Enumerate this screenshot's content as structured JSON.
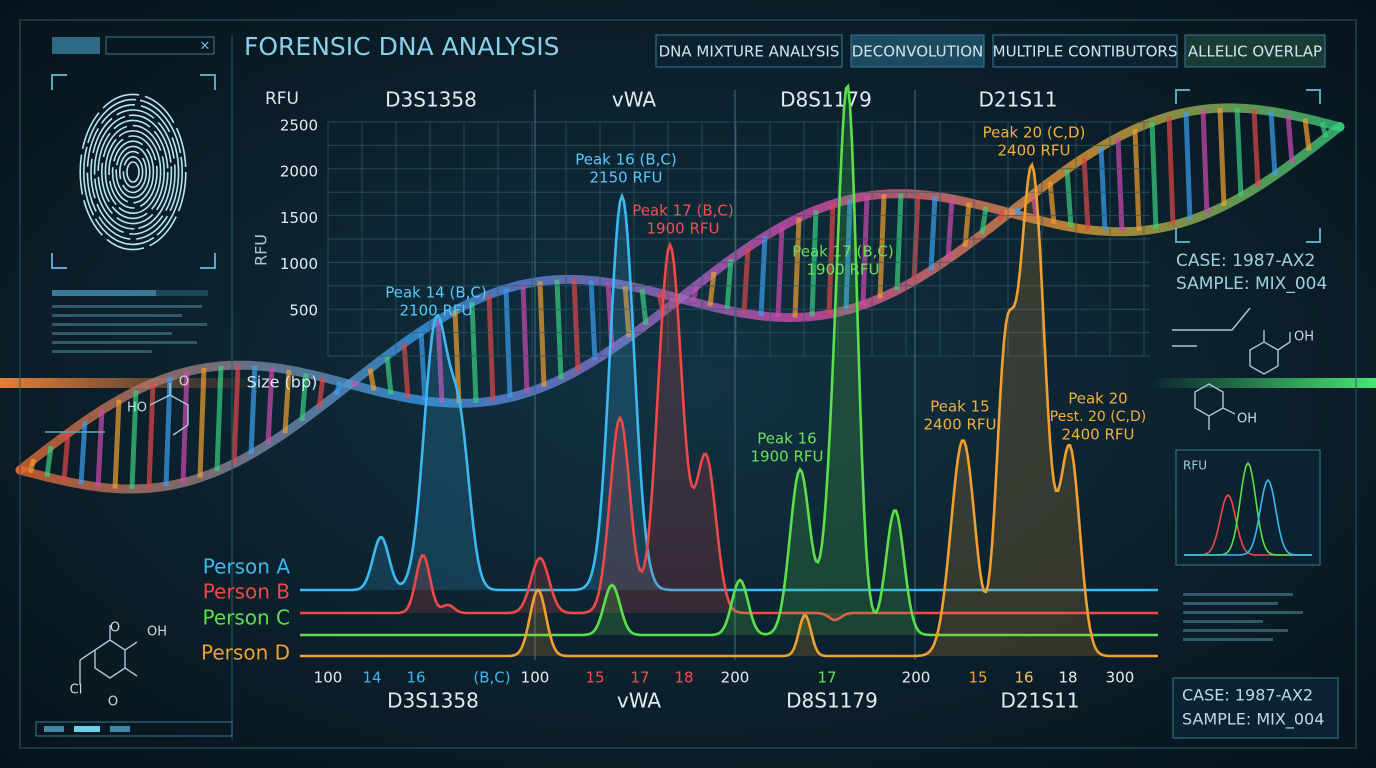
{
  "header": {
    "title": "FORENSIC DNA ANALYSIS"
  },
  "tabs": [
    "DNA MIXTURE ANALYSIS",
    "DECONVOLUTION",
    "MULTIPLE CONTIBUTORS",
    "ALLELIC OVERLAP"
  ],
  "plot": {
    "y_unit": "RFU",
    "y_axis_label": "RFU",
    "x_axis_label": "Size (bp)",
    "top_loci": [
      "D3S1358",
      "vWA",
      "D8S1179",
      "D21S11"
    ],
    "yticks": [
      "2500",
      "2000",
      "1500",
      "1000",
      "500"
    ],
    "xticks": [
      "100",
      "14",
      "16",
      "(B,C)",
      "100",
      "15",
      "17",
      "18",
      "200",
      "17",
      "200",
      "15",
      "16",
      "18",
      "300"
    ],
    "bottom_loci": [
      "D3S1358",
      "vWA",
      "D8S1179",
      "D21S11"
    ],
    "persons": [
      "Person A",
      "Person B",
      "Person C",
      "Person D"
    ],
    "annotations": [
      {
        "lines": [
          "Peak 14 (B,C)",
          "2100 RFU"
        ]
      },
      {
        "lines": [
          "Peak 16 (B,C)",
          "2150 RFU"
        ]
      },
      {
        "lines": [
          "Peak 17 (B,C)",
          "1900 RFU"
        ]
      },
      {
        "lines": [
          "Peak 17 (B,C)",
          "1900 RFU"
        ]
      },
      {
        "lines": [
          "Peak 16",
          "1900 RFU"
        ]
      },
      {
        "lines": [
          "Peak 15",
          "2400 RFU"
        ]
      },
      {
        "lines": [
          "Peak 20 (C,D)",
          "2400 RFU"
        ]
      },
      {
        "lines": [
          "Peak 20",
          "Pest. 20 (C,D)",
          "2400 RFU"
        ]
      }
    ]
  },
  "molecules": [
    "HO",
    "O",
    "OH",
    "Cl",
    "O",
    "O",
    "OH",
    "OH"
  ],
  "case_top": {
    "case": "CASE: 1987-AX2",
    "sample": "SAMPLE: MIX_004"
  },
  "mini_chart": {
    "label": "RFU"
  },
  "case_bottom": {
    "case": "CASE: 1987-AX2",
    "sample": "SAMPLE: MIX_004"
  }
}
